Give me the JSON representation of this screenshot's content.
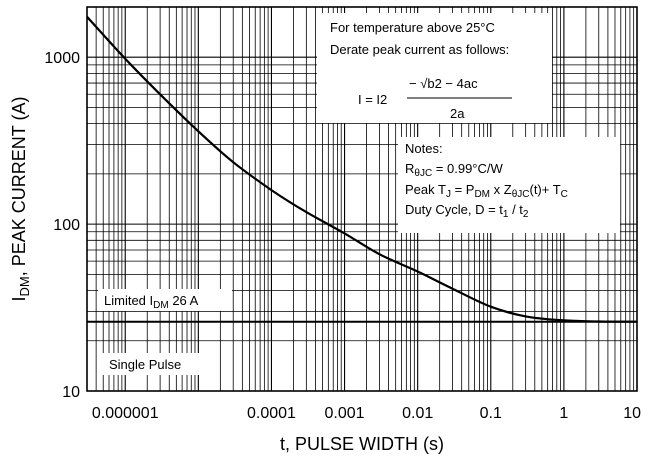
{
  "chart_data": {
    "type": "line",
    "xscale": "log",
    "yscale": "log",
    "xlim": [
      3e-07,
      10
    ],
    "ylim": [
      10,
      2000
    ],
    "grid": true,
    "x_ticks": [
      {
        "value": 1e-06,
        "label": "0.000001"
      },
      {
        "value": 0.0001,
        "label": "0.0001"
      },
      {
        "value": 0.001,
        "label": "0.001"
      },
      {
        "value": 0.01,
        "label": "0.01"
      },
      {
        "value": 0.1,
        "label": "0.1"
      },
      {
        "value": 1,
        "label": "1"
      },
      {
        "value": 10,
        "label": "10"
      }
    ],
    "y_ticks": [
      {
        "value": 10,
        "label": "10"
      },
      {
        "value": 100,
        "label": "100"
      },
      {
        "value": 1000,
        "label": "1000"
      }
    ],
    "xlabel": "t, PULSE WIDTH (s)",
    "ylabel": {
      "main": "I",
      "sub": "DM",
      "rest": ", PEAK CURRENT (A)"
    },
    "series": [
      {
        "x": [
          3e-07,
          1e-06,
          3e-06,
          1e-05,
          3e-05,
          0.0001,
          0.0003,
          0.001,
          0.003,
          0.01,
          0.03,
          0.1,
          0.3,
          1,
          3,
          10
        ],
        "y": [
          1750,
          980,
          600,
          360,
          235,
          160,
          118,
          88,
          66,
          52,
          41,
          32,
          28,
          26.5,
          26.1,
          26
        ]
      }
    ],
    "limit_line": {
      "y": 26,
      "label_prefix": "Limited I",
      "label_sub": "DM",
      "label_suffix": " 26 A"
    },
    "annotations": {
      "derate_line1": "For temperature above 25°C",
      "derate_line2": "Derate peak current as follows:",
      "formula_lhs": "I  =  I2",
      "formula_numerator": "− √b2 − 4ac",
      "formula_denominator": "2a",
      "notes_title": "Notes:",
      "note1_a": "R",
      "note1_sub": "θJC",
      "note1_b": " = 0.99°C/W",
      "note2_a": "Peak T",
      "note2_s1": "J",
      "note2_b": " = P",
      "note2_s2": "DM",
      "note2_c": " x Z",
      "note2_s3": "θJC",
      "note2_d": "(t)+ T",
      "note2_s4": "C",
      "note3_a": "Duty Cycle, D = t",
      "note3_s1": "1",
      "note3_b": " / t",
      "note3_s2": "2",
      "single_pulse": "Single Pulse"
    }
  }
}
